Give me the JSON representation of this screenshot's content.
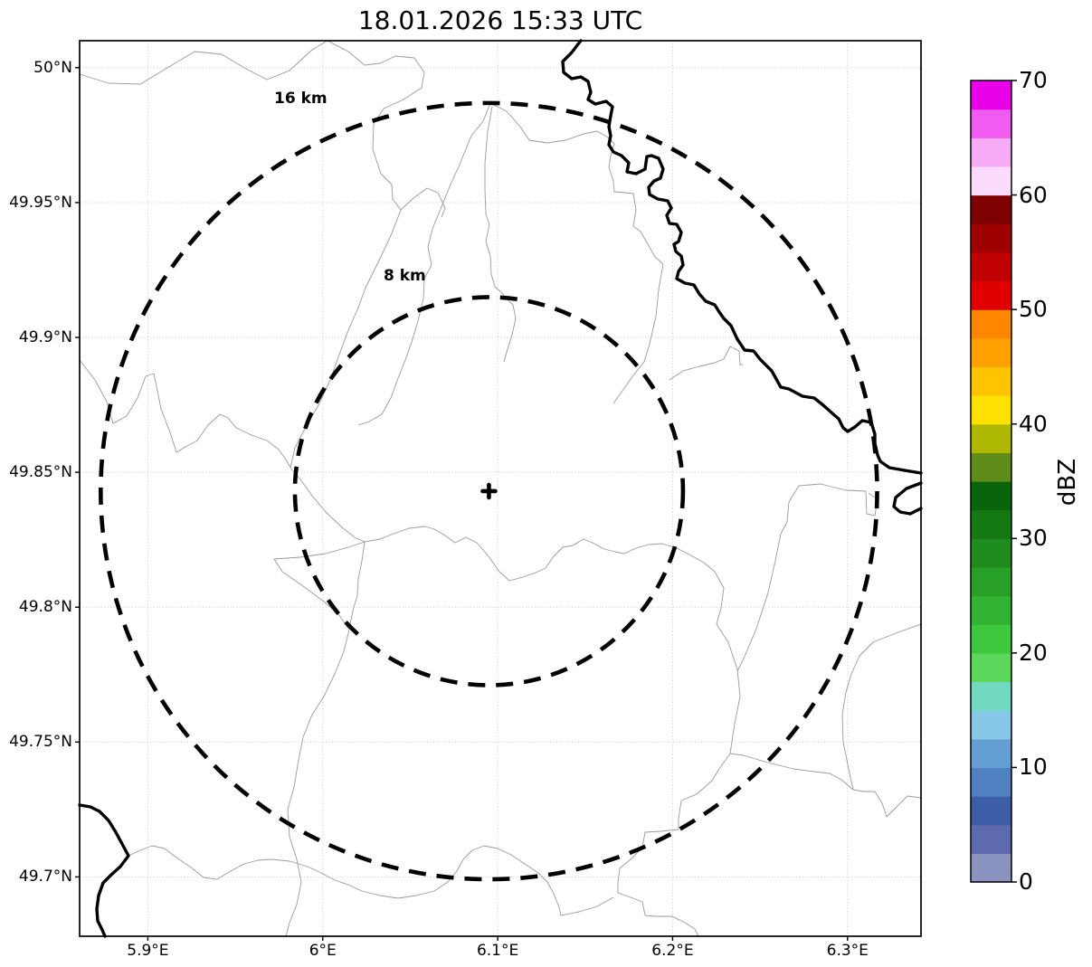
{
  "title": "18.01.2026 15:33 UTC",
  "plot": {
    "x_axis": {
      "ticks": [
        {
          "value": 5.9,
          "label": "5.9°E"
        },
        {
          "value": 6.0,
          "label": "6°E"
        },
        {
          "value": 6.1,
          "label": "6.1°E"
        },
        {
          "value": 6.2,
          "label": "6.2°E"
        },
        {
          "value": 6.3,
          "label": "6.3°E"
        }
      ]
    },
    "y_axis": {
      "ticks": [
        {
          "value": 50.0,
          "label": "50°N"
        },
        {
          "value": 49.95,
          "label": "49.95°N"
        },
        {
          "value": 49.9,
          "label": "49.9°N"
        },
        {
          "value": 49.85,
          "label": "49.85°N"
        },
        {
          "value": 49.8,
          "label": "49.8°N"
        },
        {
          "value": 49.75,
          "label": "49.75°N"
        },
        {
          "value": 49.7,
          "label": "49.7°N"
        }
      ]
    },
    "range_rings": [
      {
        "label": "16 km",
        "radius_km": 16
      },
      {
        "label": "8 km",
        "radius_km": 8
      }
    ],
    "radar_site": {
      "lon": 6.095,
      "lat": 49.843,
      "marker": "plus"
    }
  },
  "colorbar": {
    "unit": "dBZ",
    "min": 0,
    "max": 70,
    "band_step": 2.5,
    "ticks": [
      {
        "value": 0,
        "label": "0"
      },
      {
        "value": 10,
        "label": "10"
      },
      {
        "value": 20,
        "label": "20"
      },
      {
        "value": 30,
        "label": "30"
      },
      {
        "value": 40,
        "label": "40"
      },
      {
        "value": 50,
        "label": "50"
      },
      {
        "value": 60,
        "label": "60"
      },
      {
        "value": 70,
        "label": "70"
      }
    ],
    "band_colors_low_to_high": [
      "#8A93BF",
      "#5D6BAE",
      "#3E5DA9",
      "#4F80C0",
      "#649ED2",
      "#87C8E8",
      "#70D9C0",
      "#5CD75C",
      "#3DC83D",
      "#32B432",
      "#28A028",
      "#1E8C1E",
      "#147814",
      "#0A640A",
      "#5F8C1A",
      "#AFB800",
      "#FFE100",
      "#FFC300",
      "#FFA200",
      "#FF8700",
      "#E10000",
      "#C00000",
      "#9E0000",
      "#7E0000",
      "#FCDCFC",
      "#F8ACF8",
      "#F05CF0",
      "#E800E8"
    ]
  },
  "chart_data": {
    "type": "map",
    "title": "18.01.2026 15:33 UTC",
    "projection": "lon/lat degrees",
    "x_range": [
      5.861,
      6.342
    ],
    "y_range": [
      49.678,
      50.01
    ],
    "grid": true,
    "radar_center": {
      "lon": 6.095,
      "lat": 49.843
    },
    "range_rings_km": [
      8,
      16
    ],
    "radar_echoes": [],
    "colorbar_label": "dBZ",
    "colorbar_range": [
      0,
      70
    ]
  }
}
